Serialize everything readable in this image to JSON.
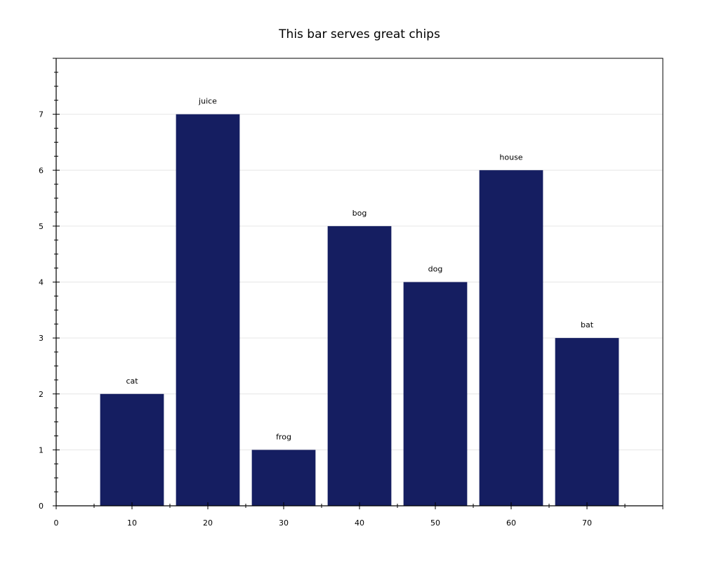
{
  "chart_data": {
    "type": "bar",
    "title": "This bar serves great chips",
    "xlabel": "",
    "ylabel": "",
    "bar_color": "#151e61",
    "bars": [
      {
        "x": 10,
        "value": 2,
        "label": "cat"
      },
      {
        "x": 20,
        "value": 7,
        "label": "juice"
      },
      {
        "x": 30,
        "value": 1,
        "label": "frog"
      },
      {
        "x": 40,
        "value": 5,
        "label": "bog"
      },
      {
        "x": 50,
        "value": 4,
        "label": "dog"
      },
      {
        "x": 60,
        "value": 6,
        "label": "house"
      },
      {
        "x": 70,
        "value": 3,
        "label": "bat"
      }
    ],
    "bar_width": 8.4,
    "xlim": [
      0,
      80
    ],
    "ylim": [
      0,
      8
    ],
    "x_ticks": [
      0,
      10,
      20,
      30,
      40,
      50,
      60,
      70
    ],
    "y_ticks": [
      0,
      1,
      2,
      3,
      4,
      5,
      6,
      7
    ],
    "grid": "horizontal",
    "legend": "none"
  }
}
